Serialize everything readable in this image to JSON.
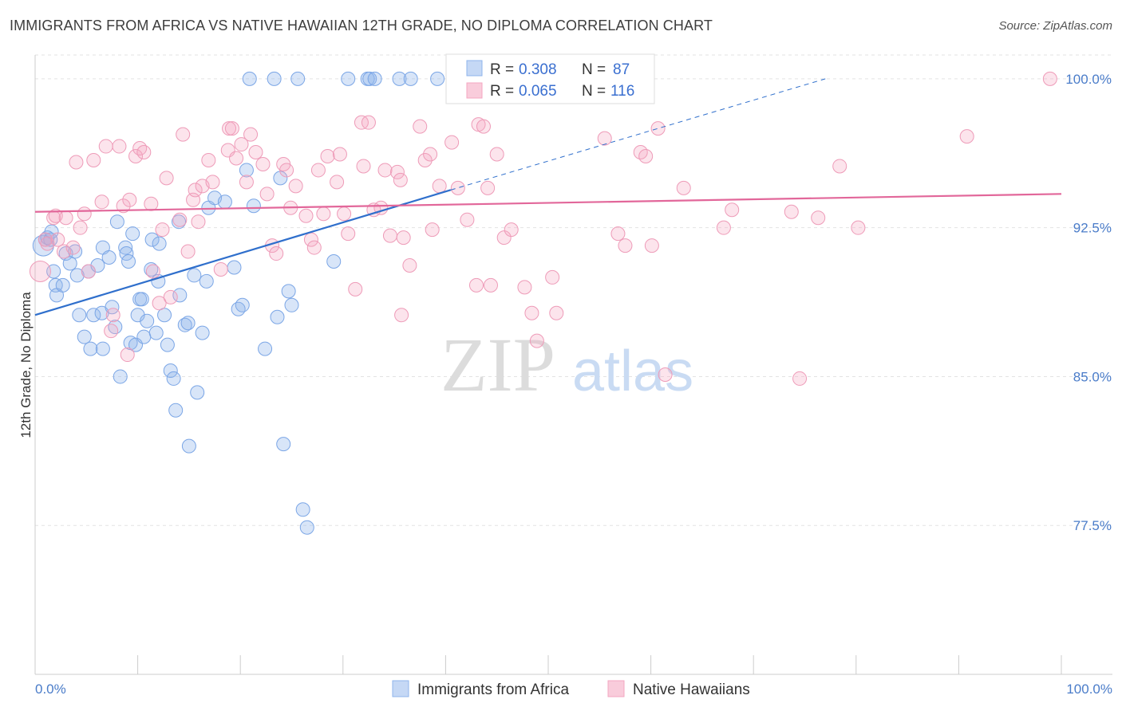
{
  "title": "IMMIGRANTS FROM AFRICA VS NATIVE HAWAIIAN 12TH GRADE, NO DIPLOMA CORRELATION CHART",
  "source": "Source: ZipAtlas.com",
  "watermark": {
    "zip": "ZIP",
    "atlas": "atlas"
  },
  "colors": {
    "blue": "#8fb4ec",
    "blue_line": "#2f6fcc",
    "pink": "#f4a6c0",
    "pink_line": "#e2679a"
  },
  "legend": {
    "r_label": "R =",
    "n_label": "N =",
    "series": [
      {
        "r": "0.308",
        "n": "87"
      },
      {
        "r": "0.065",
        "n": "116"
      }
    ]
  },
  "chart_data": {
    "type": "scatter",
    "title": "IMMIGRANTS FROM AFRICA VS NATIVE HAWAIIAN 12TH GRADE, NO DIPLOMA CORRELATION CHART",
    "xlabel": "",
    "ylabel": "12th Grade, No Diploma",
    "xlim": [
      0,
      100
    ],
    "ylim": [
      70.0,
      101.2
    ],
    "x_tick_labels": [
      "0.0%",
      "100.0%"
    ],
    "y_ticks": [
      77.5,
      85.0,
      92.5,
      100.0
    ],
    "y_tick_labels": [
      "77.5%",
      "85.0%",
      "92.5%",
      "100.0%"
    ],
    "grid": true,
    "legend_position": "top-center",
    "series": [
      {
        "name": "Immigrants from Africa",
        "color": "#8fb4ec",
        "trend": {
          "x": [
            0,
            40.5
          ],
          "y": [
            88.1,
            94.4
          ],
          "dashed_to": [
            77,
            100.0
          ]
        },
        "points": [
          [
            0.8,
            91.6
          ],
          [
            1.0,
            91.9
          ],
          [
            1.2,
            92.0
          ],
          [
            1.5,
            91.9
          ],
          [
            1.6,
            92.3
          ],
          [
            1.8,
            90.3
          ],
          [
            2.0,
            89.6
          ],
          [
            2.1,
            89.1
          ],
          [
            2.7,
            89.6
          ],
          [
            3.0,
            91.2
          ],
          [
            3.4,
            90.7
          ],
          [
            3.9,
            91.3
          ],
          [
            4.1,
            90.1
          ],
          [
            4.3,
            88.1
          ],
          [
            4.8,
            87.0
          ],
          [
            5.2,
            90.3
          ],
          [
            5.4,
            86.4
          ],
          [
            5.7,
            88.1
          ],
          [
            6.1,
            90.6
          ],
          [
            6.5,
            88.2
          ],
          [
            6.6,
            86.4
          ],
          [
            6.6,
            91.5
          ],
          [
            7.2,
            91.0
          ],
          [
            7.5,
            88.5
          ],
          [
            7.8,
            87.5
          ],
          [
            8.0,
            92.8
          ],
          [
            8.3,
            85.0
          ],
          [
            8.8,
            91.5
          ],
          [
            8.9,
            91.2
          ],
          [
            9.1,
            90.8
          ],
          [
            9.3,
            86.7
          ],
          [
            9.5,
            92.2
          ],
          [
            9.8,
            86.6
          ],
          [
            10.0,
            88.1
          ],
          [
            10.2,
            88.9
          ],
          [
            10.4,
            88.9
          ],
          [
            10.6,
            87.0
          ],
          [
            10.9,
            87.8
          ],
          [
            11.3,
            90.4
          ],
          [
            11.4,
            91.9
          ],
          [
            11.8,
            87.2
          ],
          [
            12.0,
            89.8
          ],
          [
            12.1,
            91.7
          ],
          [
            12.6,
            88.1
          ],
          [
            12.9,
            86.6
          ],
          [
            13.2,
            85.3
          ],
          [
            13.5,
            84.9
          ],
          [
            13.7,
            83.3
          ],
          [
            14.0,
            92.8
          ],
          [
            14.1,
            89.1
          ],
          [
            14.6,
            87.6
          ],
          [
            14.9,
            87.7
          ],
          [
            15.0,
            81.5
          ],
          [
            15.5,
            90.1
          ],
          [
            15.8,
            84.2
          ],
          [
            16.3,
            87.2
          ],
          [
            16.7,
            89.8
          ],
          [
            16.9,
            93.5
          ],
          [
            17.5,
            94.0
          ],
          [
            18.5,
            93.8
          ],
          [
            19.4,
            90.5
          ],
          [
            19.8,
            88.4
          ],
          [
            20.2,
            88.6
          ],
          [
            20.6,
            95.4
          ],
          [
            20.9,
            100.0
          ],
          [
            21.3,
            93.6
          ],
          [
            22.4,
            86.4
          ],
          [
            23.3,
            100.0
          ],
          [
            23.6,
            88.0
          ],
          [
            23.9,
            95.0
          ],
          [
            24.2,
            81.6
          ],
          [
            24.7,
            89.3
          ],
          [
            25.0,
            88.6
          ],
          [
            25.6,
            100.0
          ],
          [
            26.1,
            78.3
          ],
          [
            26.5,
            77.4
          ],
          [
            29.1,
            90.8
          ],
          [
            30.5,
            100.0
          ],
          [
            32.4,
            100.0
          ],
          [
            32.6,
            100.0
          ],
          [
            33.1,
            100.0
          ],
          [
            35.5,
            100.0
          ],
          [
            36.6,
            100.0
          ],
          [
            39.2,
            100.0
          ],
          [
            41.5,
            100.0
          ],
          [
            48.1,
            100.0
          ],
          [
            57.8,
            100.0
          ]
        ]
      },
      {
        "name": "Native Hawaiians",
        "color": "#f4a6c0",
        "trend": {
          "x": [
            0,
            100
          ],
          "y": [
            93.3,
            94.2
          ]
        },
        "points": [
          [
            0.5,
            90.3
          ],
          [
            1.0,
            91.9
          ],
          [
            1.2,
            91.7
          ],
          [
            1.8,
            93.0
          ],
          [
            2.0,
            93.1
          ],
          [
            2.2,
            91.9
          ],
          [
            2.8,
            91.3
          ],
          [
            3.0,
            93.0
          ],
          [
            3.7,
            91.5
          ],
          [
            4.0,
            95.8
          ],
          [
            4.4,
            92.5
          ],
          [
            4.8,
            93.2
          ],
          [
            5.2,
            90.3
          ],
          [
            5.7,
            95.9
          ],
          [
            6.5,
            93.8
          ],
          [
            6.9,
            96.6
          ],
          [
            7.4,
            87.3
          ],
          [
            7.6,
            88.1
          ],
          [
            8.2,
            96.6
          ],
          [
            8.6,
            93.6
          ],
          [
            9.0,
            86.1
          ],
          [
            9.2,
            93.9
          ],
          [
            9.8,
            96.1
          ],
          [
            10.2,
            96.5
          ],
          [
            10.6,
            96.3
          ],
          [
            11.3,
            93.7
          ],
          [
            11.5,
            90.3
          ],
          [
            12.1,
            88.7
          ],
          [
            12.4,
            92.4
          ],
          [
            12.8,
            95.0
          ],
          [
            13.2,
            89.0
          ],
          [
            14.1,
            92.9
          ],
          [
            14.4,
            97.2
          ],
          [
            14.9,
            91.3
          ],
          [
            15.4,
            93.9
          ],
          [
            15.6,
            94.4
          ],
          [
            15.9,
            92.8
          ],
          [
            16.3,
            94.6
          ],
          [
            16.9,
            95.9
          ],
          [
            17.3,
            94.8
          ],
          [
            18.1,
            90.4
          ],
          [
            18.8,
            96.4
          ],
          [
            18.9,
            97.5
          ],
          [
            19.2,
            97.5
          ],
          [
            19.6,
            96.0
          ],
          [
            20.1,
            96.7
          ],
          [
            20.6,
            94.8
          ],
          [
            21.0,
            97.2
          ],
          [
            21.5,
            96.3
          ],
          [
            22.2,
            95.7
          ],
          [
            22.6,
            94.2
          ],
          [
            23.1,
            91.6
          ],
          [
            23.5,
            91.2
          ],
          [
            24.2,
            95.7
          ],
          [
            24.5,
            95.4
          ],
          [
            24.9,
            93.5
          ],
          [
            25.4,
            94.6
          ],
          [
            26.4,
            93.1
          ],
          [
            26.9,
            91.9
          ],
          [
            27.2,
            91.5
          ],
          [
            27.6,
            95.4
          ],
          [
            28.1,
            93.2
          ],
          [
            28.5,
            96.1
          ],
          [
            29.4,
            94.8
          ],
          [
            29.7,
            96.2
          ],
          [
            30.1,
            93.2
          ],
          [
            30.5,
            92.2
          ],
          [
            31.2,
            89.4
          ],
          [
            31.8,
            97.8
          ],
          [
            32.0,
            95.6
          ],
          [
            32.5,
            97.8
          ],
          [
            33.0,
            93.4
          ],
          [
            33.7,
            93.5
          ],
          [
            34.1,
            95.4
          ],
          [
            34.6,
            92.1
          ],
          [
            35.3,
            95.3
          ],
          [
            35.6,
            94.9
          ],
          [
            35.7,
            88.1
          ],
          [
            35.9,
            92.0
          ],
          [
            36.5,
            90.6
          ],
          [
            37.5,
            97.6
          ],
          [
            38.0,
            95.9
          ],
          [
            38.5,
            96.2
          ],
          [
            38.7,
            92.4
          ],
          [
            39.4,
            94.6
          ],
          [
            40.6,
            96.8
          ],
          [
            41.2,
            94.5
          ],
          [
            42.1,
            92.9
          ],
          [
            43.0,
            89.6
          ],
          [
            43.2,
            97.7
          ],
          [
            43.7,
            97.6
          ],
          [
            44.1,
            94.5
          ],
          [
            44.4,
            89.6
          ],
          [
            45.0,
            96.2
          ],
          [
            45.7,
            92.0
          ],
          [
            46.4,
            92.4
          ],
          [
            47.7,
            89.5
          ],
          [
            48.4,
            88.2
          ],
          [
            48.9,
            86.8
          ],
          [
            50.4,
            90.0
          ],
          [
            50.8,
            88.2
          ],
          [
            51.9,
            100.0
          ],
          [
            55.5,
            97.0
          ],
          [
            56.8,
            92.2
          ],
          [
            57.5,
            91.6
          ],
          [
            59.0,
            96.3
          ],
          [
            59.5,
            96.1
          ],
          [
            60.1,
            91.6
          ],
          [
            60.7,
            97.5
          ],
          [
            61.4,
            85.1
          ],
          [
            63.2,
            94.5
          ],
          [
            67.1,
            92.5
          ],
          [
            67.9,
            93.4
          ],
          [
            73.7,
            93.3
          ],
          [
            74.5,
            84.9
          ],
          [
            76.3,
            93.0
          ],
          [
            78.4,
            95.6
          ],
          [
            80.2,
            92.5
          ],
          [
            90.8,
            97.1
          ],
          [
            98.9,
            100.0
          ]
        ]
      }
    ]
  },
  "bottom_legend": [
    "Immigrants from Africa",
    "Native Hawaiians"
  ]
}
